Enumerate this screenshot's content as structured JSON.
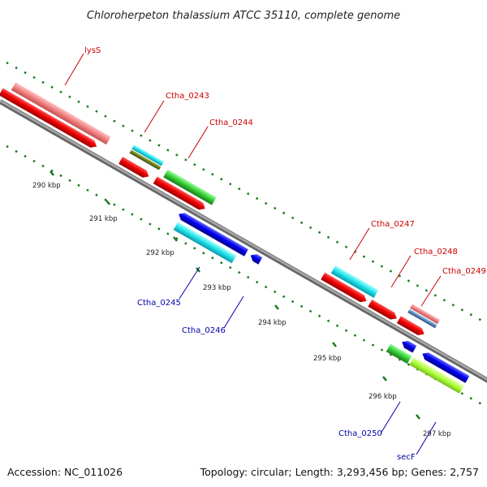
{
  "title": "Chloroherpeton thalassium ATCC 35110, complete genome",
  "footer": {
    "accession": "Accession: NC_011026",
    "summary": "Topology: circular; Length: 3,293,456 bp; Genes: 2,757"
  },
  "colors": {
    "backbone": "#8c8c8c",
    "tick": "#1a7a1a",
    "label_red": "#cc0000",
    "label_blue": "#0000aa",
    "cds_red": "#ee0000",
    "rrna_pink": "#f08080",
    "trna_cyan": "#20e0e8",
    "blue": "#0000ee",
    "green": "#33cc33",
    "lime": "#aaff33"
  },
  "scale_labels": [
    "290 kbp",
    "291 kbp",
    "292 kbp",
    "293 kbp",
    "294 kbp",
    "295 kbp",
    "296 kbp",
    "297 kbp"
  ],
  "gene_labels": [
    {
      "text": "lysS",
      "strand": "forward"
    },
    {
      "text": "Ctha_0243",
      "strand": "forward"
    },
    {
      "text": "Ctha_0244",
      "strand": "forward"
    },
    {
      "text": "Ctha_0247",
      "strand": "forward"
    },
    {
      "text": "Ctha_0248",
      "strand": "forward"
    },
    {
      "text": "Ctha_0249",
      "strand": "forward"
    },
    {
      "text": "Ctha_0245",
      "strand": "reverse"
    },
    {
      "text": "Ctha_0246",
      "strand": "reverse"
    },
    {
      "text": "Ctha_0250",
      "strand": "reverse"
    },
    {
      "text": "secF",
      "strand": "reverse"
    }
  ]
}
